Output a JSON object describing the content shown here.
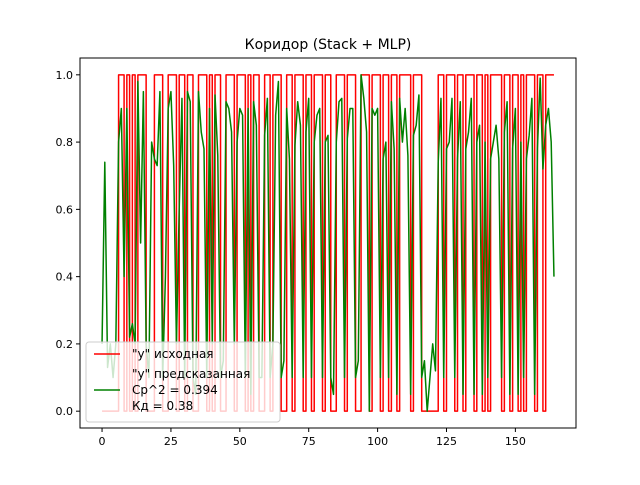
{
  "chart_data": {
    "type": "line",
    "title": "Коридор (Stack + MLP)",
    "xlabel": "",
    "ylabel": "",
    "xlim": [
      -8,
      172
    ],
    "ylim": [
      -0.05,
      1.05
    ],
    "xticks": [
      0,
      25,
      50,
      75,
      100,
      125,
      150
    ],
    "yticks": [
      0.0,
      0.2,
      0.4,
      0.6,
      0.8,
      1.0
    ],
    "xtick_labels": [
      "0",
      "25",
      "50",
      "75",
      "100",
      "125",
      "150"
    ],
    "ytick_labels": [
      "0.0",
      "0.2",
      "0.4",
      "0.6",
      "0.8",
      "1.0"
    ],
    "grid": false,
    "legend_position": "lower-left",
    "series": [
      {
        "name": "\"y\" исходная",
        "color": "#ff0000",
        "line_style": "steps",
        "x": [
          0,
          1,
          2,
          3,
          4,
          5,
          6,
          7,
          8,
          9,
          10,
          11,
          12,
          13,
          14,
          15,
          16,
          17,
          18,
          19,
          20,
          21,
          22,
          23,
          24,
          25,
          26,
          27,
          28,
          29,
          30,
          31,
          32,
          33,
          34,
          35,
          36,
          37,
          38,
          39,
          40,
          41,
          42,
          43,
          44,
          45,
          46,
          47,
          48,
          49,
          50,
          51,
          52,
          53,
          54,
          55,
          56,
          57,
          58,
          59,
          60,
          61,
          62,
          63,
          64,
          65,
          66,
          67,
          68,
          69,
          70,
          71,
          72,
          73,
          74,
          75,
          76,
          77,
          78,
          79,
          80,
          81,
          82,
          83,
          84,
          85,
          86,
          87,
          88,
          89,
          90,
          91,
          92,
          93,
          94,
          95,
          96,
          97,
          98,
          99,
          100,
          101,
          102,
          103,
          104,
          105,
          106,
          107,
          108,
          109,
          110,
          111,
          112,
          113,
          114,
          115,
          116,
          117,
          118,
          119,
          120,
          121,
          122,
          123,
          124,
          125,
          126,
          127,
          128,
          129,
          130,
          131,
          132,
          133,
          134,
          135,
          136,
          137,
          138,
          139,
          140,
          141,
          142,
          143,
          144,
          145,
          146,
          147,
          148,
          149,
          150,
          151,
          152,
          153,
          154,
          155,
          156,
          157,
          158,
          159,
          160,
          161,
          162,
          163,
          164
        ],
        "values": [
          0,
          0,
          0,
          0,
          0,
          0,
          1,
          1,
          0,
          1,
          0,
          1,
          0,
          1,
          1,
          1,
          0,
          0,
          0,
          1,
          1,
          1,
          0,
          0,
          1,
          1,
          1,
          0,
          1,
          1,
          0,
          1,
          1,
          0,
          0,
          1,
          1,
          1,
          0,
          1,
          0,
          1,
          1,
          0,
          0,
          1,
          1,
          1,
          0,
          1,
          1,
          1,
          0,
          1,
          0,
          1,
          1,
          0,
          0,
          1,
          1,
          0,
          1,
          1,
          1,
          0,
          0,
          1,
          1,
          0,
          1,
          1,
          1,
          0,
          1,
          1,
          0,
          1,
          1,
          1,
          0,
          1,
          1,
          0,
          0,
          1,
          1,
          1,
          0,
          1,
          1,
          1,
          0,
          0,
          1,
          1,
          1,
          0,
          1,
          1,
          1,
          0,
          1,
          1,
          0,
          1,
          1,
          0,
          1,
          1,
          1,
          1,
          0,
          1,
          1,
          1,
          0,
          0,
          0,
          0,
          0,
          0,
          1,
          1,
          0,
          1,
          1,
          1,
          0,
          1,
          1,
          0,
          1,
          1,
          1,
          0,
          1,
          1,
          0,
          1,
          0,
          1,
          1,
          1,
          1,
          0,
          1,
          1,
          0,
          1,
          1,
          0,
          1,
          0,
          1,
          1,
          1,
          0,
          1,
          1,
          0,
          1,
          1,
          1,
          1
        ]
      },
      {
        "name": "\"y\" предсказанная",
        "color": "#008000",
        "line_style": "linear",
        "x": [
          0,
          1,
          2,
          3,
          4,
          5,
          6,
          7,
          8,
          9,
          10,
          11,
          12,
          13,
          14,
          15,
          16,
          17,
          18,
          19,
          20,
          21,
          22,
          23,
          24,
          25,
          26,
          27,
          28,
          29,
          30,
          31,
          32,
          33,
          34,
          35,
          36,
          37,
          38,
          39,
          40,
          41,
          42,
          43,
          44,
          45,
          46,
          47,
          48,
          49,
          50,
          51,
          52,
          53,
          54,
          55,
          56,
          57,
          58,
          59,
          60,
          61,
          62,
          63,
          64,
          65,
          66,
          67,
          68,
          69,
          70,
          71,
          72,
          73,
          74,
          75,
          76,
          77,
          78,
          79,
          80,
          81,
          82,
          83,
          84,
          85,
          86,
          87,
          88,
          89,
          90,
          91,
          92,
          93,
          94,
          95,
          96,
          97,
          98,
          99,
          100,
          101,
          102,
          103,
          104,
          105,
          106,
          107,
          108,
          109,
          110,
          111,
          112,
          113,
          114,
          115,
          116,
          117,
          118,
          119,
          120,
          121,
          122,
          123,
          124,
          125,
          126,
          127,
          128,
          129,
          130,
          131,
          132,
          133,
          134,
          135,
          136,
          137,
          138,
          139,
          140,
          141,
          142,
          143,
          144,
          145,
          146,
          147,
          148,
          149,
          150,
          151,
          152,
          153,
          154,
          155,
          156,
          157,
          158,
          159,
          160,
          161,
          162,
          163,
          164
        ],
        "values": [
          0.2,
          0.74,
          0.13,
          0.2,
          0.1,
          0.2,
          0.8,
          0.9,
          0.4,
          0.9,
          0.22,
          0.26,
          0.2,
          0.98,
          0.5,
          0.95,
          0.2,
          0.1,
          0.8,
          0.75,
          0.73,
          0.95,
          0.1,
          0.4,
          0.9,
          0.95,
          0.73,
          0.2,
          0.6,
          0.93,
          0.1,
          0.95,
          0.92,
          0.1,
          0.05,
          0.95,
          0.83,
          0.78,
          0.1,
          0.9,
          0.2,
          0.94,
          0.76,
          0.1,
          0.15,
          0.92,
          0.9,
          0.83,
          0.2,
          0.8,
          0.9,
          0.88,
          0.1,
          0.9,
          0.05,
          0.92,
          0.85,
          0.1,
          0.1,
          0.82,
          0.93,
          0.1,
          0.2,
          0.88,
          0.98,
          0.1,
          0.15,
          0.9,
          0.75,
          0.1,
          0.79,
          0.92,
          0.85,
          0.1,
          0.83,
          0.93,
          0.1,
          0.8,
          0.88,
          0.9,
          0.1,
          0.8,
          0.82,
          0.1,
          0.05,
          0.8,
          0.92,
          0.93,
          0.1,
          0.81,
          0.9,
          0.9,
          0.1,
          0.15,
          1.0,
          0.93,
          0.83,
          0.0,
          0.9,
          0.88,
          0.9,
          0.1,
          0.75,
          0.8,
          0.1,
          0.92,
          0.78,
          0.05,
          0.93,
          0.8,
          0.9,
          0.76,
          0.05,
          0.82,
          0.85,
          0.94,
          0.1,
          0.15,
          0.0,
          0.1,
          0.2,
          0.12,
          0.74,
          0.93,
          0.1,
          0.78,
          0.8,
          0.93,
          0.1,
          0.75,
          0.92,
          0.05,
          0.78,
          0.83,
          0.93,
          0.05,
          0.8,
          0.85,
          0.05,
          0.8,
          0.1,
          0.75,
          0.8,
          0.85,
          0.75,
          0.1,
          0.83,
          0.92,
          0.05,
          0.78,
          0.9,
          0.05,
          0.8,
          0.1,
          0.75,
          0.82,
          0.93,
          0.05,
          0.78,
          0.99,
          0.72,
          0.85,
          0.9,
          0.8,
          0.4
        ]
      }
    ],
    "legend": [
      {
        "label": "\"y\" исходная",
        "color": "#ff0000",
        "has_line": true
      },
      {
        "label": "\"y\" предсказанная",
        "color": "#008000",
        "has_line": false
      },
      {
        "label": "Ср^2 = 0.394",
        "color": "#008000",
        "has_line": true
      },
      {
        "label": "Кд = 0.38",
        "color": "#008000",
        "has_line": false
      }
    ]
  }
}
